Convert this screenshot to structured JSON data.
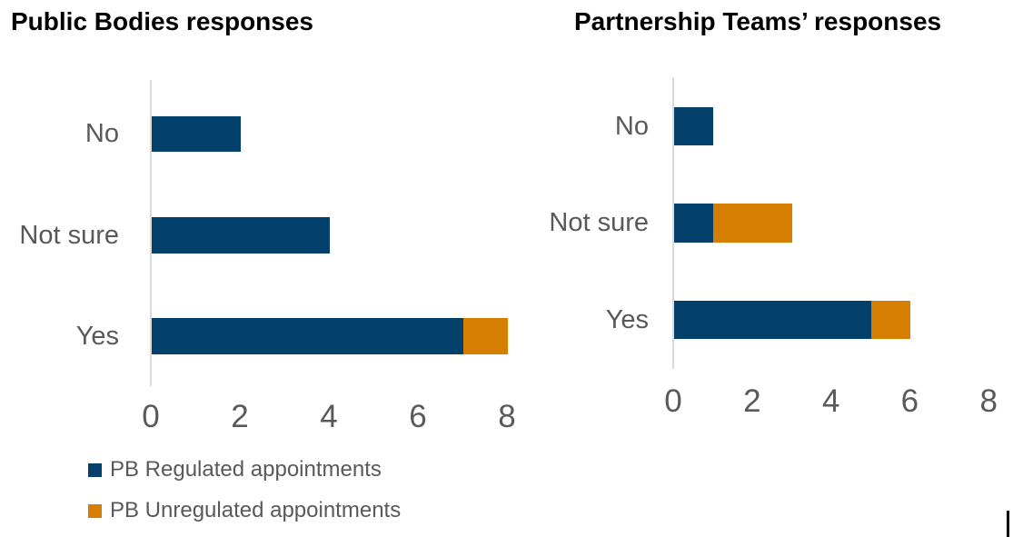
{
  "chart_data": [
    {
      "type": "bar",
      "orientation": "horizontal",
      "stacked": true,
      "title": "Public Bodies responses",
      "categories": [
        "No",
        "Not sure",
        "Yes"
      ],
      "series": [
        {
          "name": "PB Regulated appointments",
          "color": "#03406B",
          "values": [
            2,
            4,
            7
          ]
        },
        {
          "name": "PB Unregulated appointments",
          "color": "#D67E02",
          "values": [
            0,
            0,
            1
          ]
        }
      ],
      "xlim": [
        0,
        8
      ],
      "ticks": [
        0,
        2,
        4,
        6,
        8
      ],
      "grid": false,
      "xlabel": "",
      "ylabel": ""
    },
    {
      "type": "bar",
      "orientation": "horizontal",
      "stacked": true,
      "title": "Partnership Teams’ responses",
      "categories": [
        "No",
        "Not sure",
        "Yes"
      ],
      "series": [
        {
          "name": "PB Regulated appointments",
          "color": "#03406B",
          "values": [
            1,
            1,
            5
          ]
        },
        {
          "name": "PB Unregulated appointments",
          "color": "#D67E02",
          "values": [
            0,
            2,
            1
          ]
        }
      ],
      "xlim": [
        0,
        8
      ],
      "ticks": [
        0,
        2,
        4,
        6,
        8
      ],
      "grid": false,
      "xlabel": "",
      "ylabel": ""
    }
  ],
  "legend": {
    "position": "bottom-left",
    "items": [
      {
        "label": "PB Regulated appointments",
        "color": "#03406B"
      },
      {
        "label": "PB Unregulated appointments",
        "color": "#D67E02"
      }
    ]
  }
}
